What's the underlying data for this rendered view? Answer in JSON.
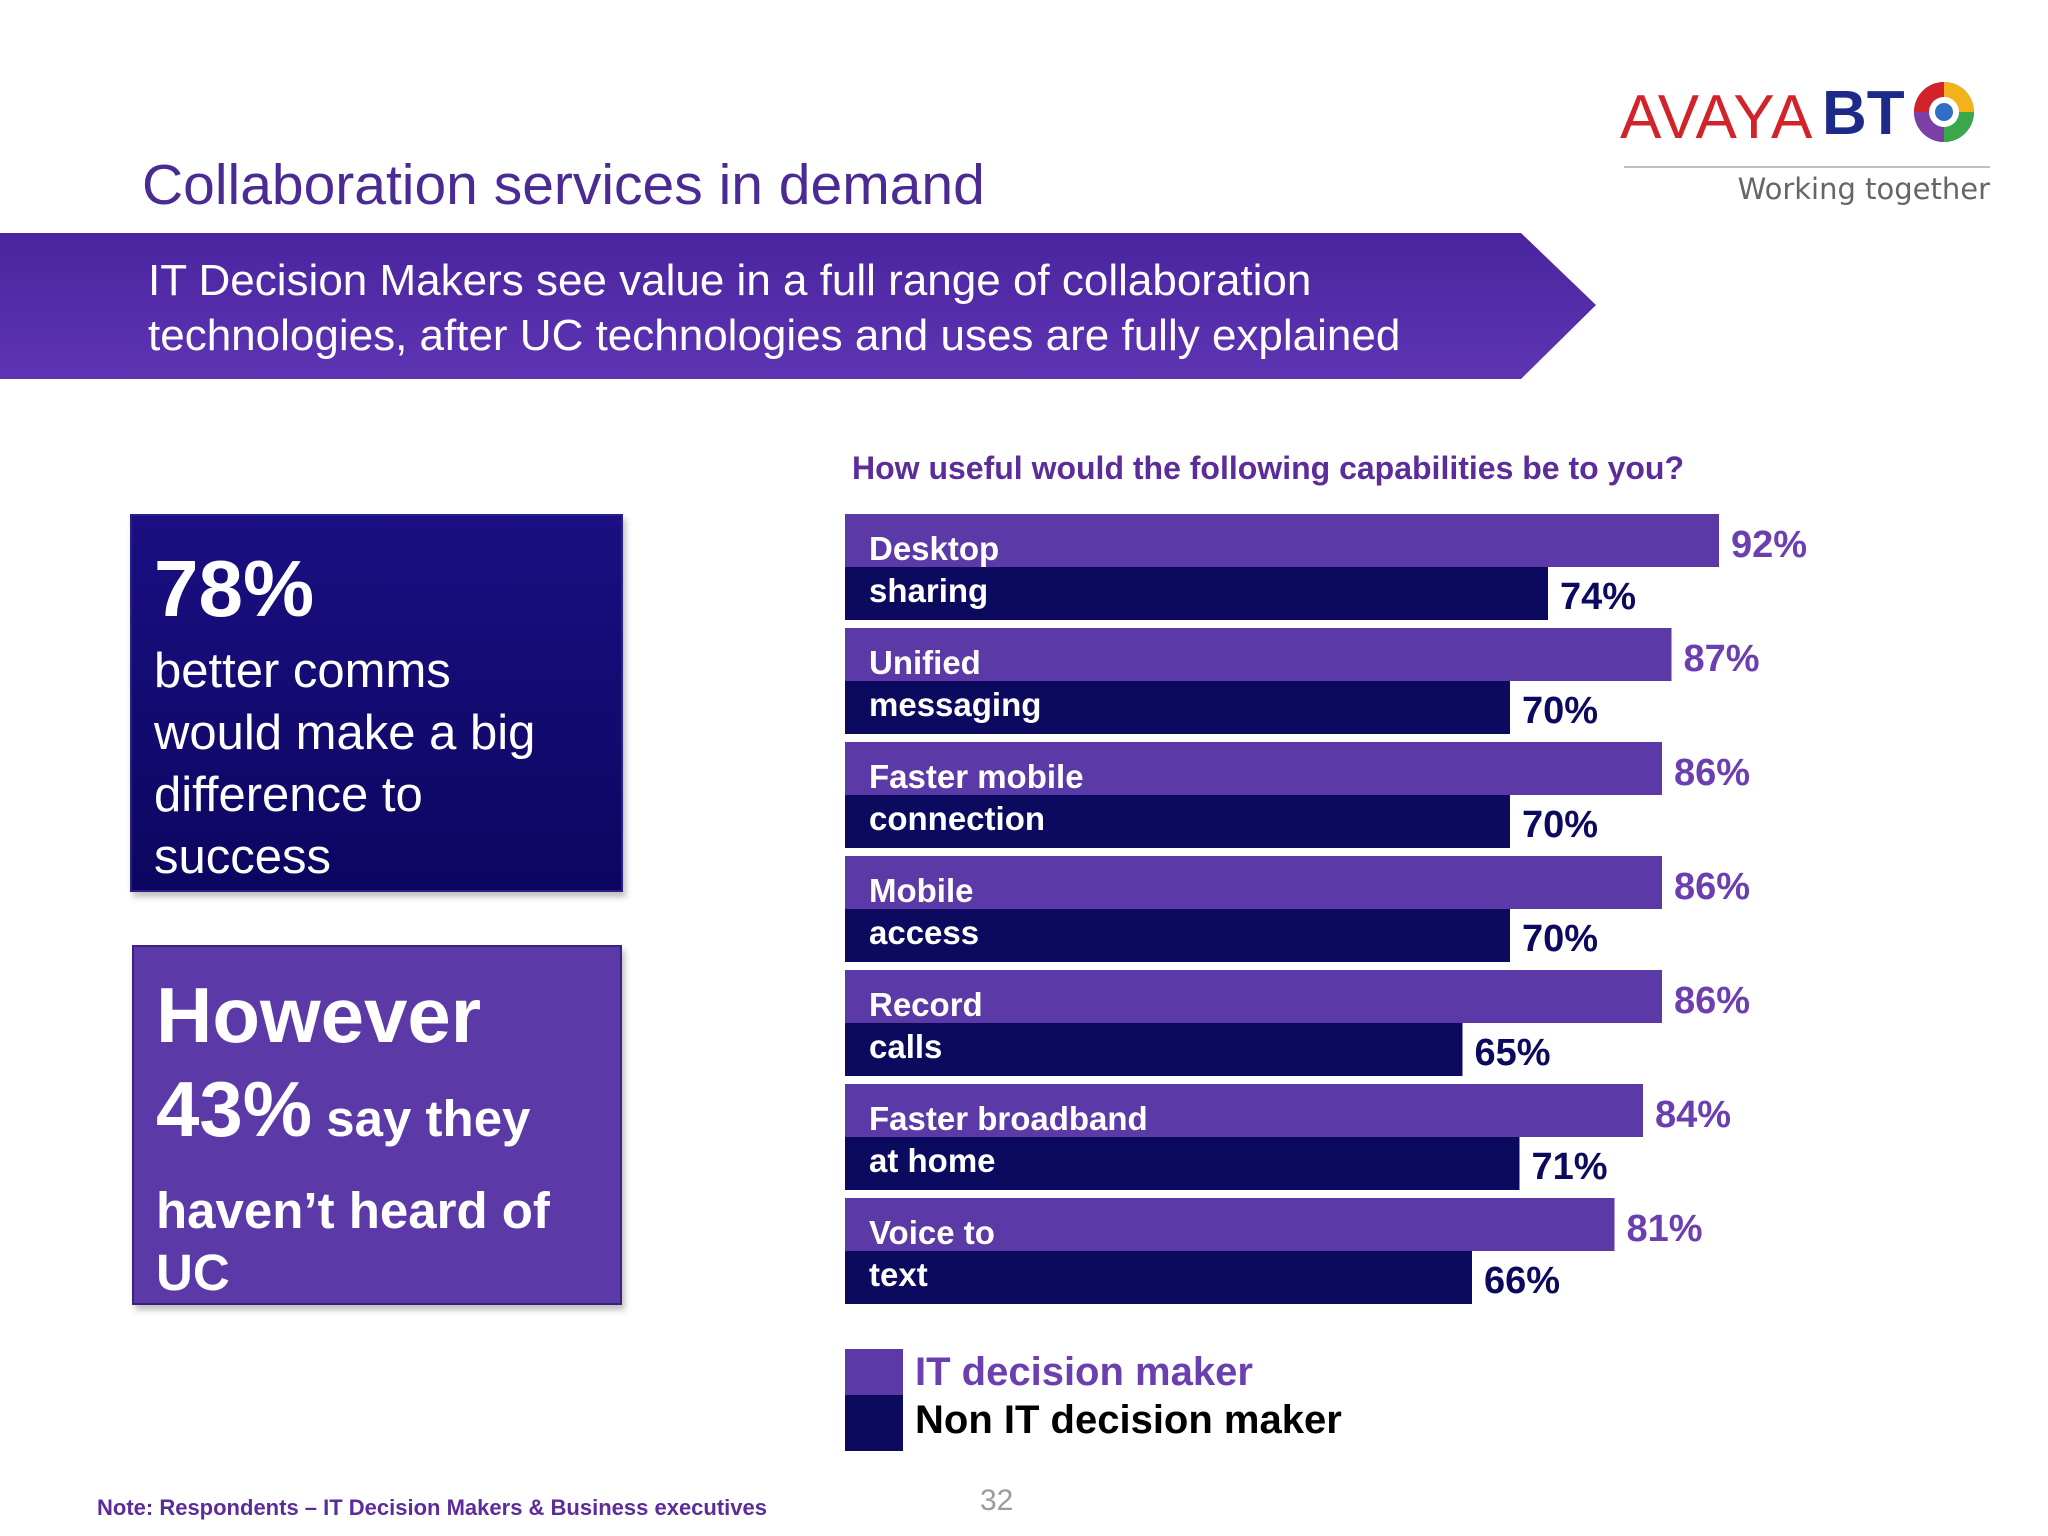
{
  "header": {
    "slide_title": "Collaboration services in demand",
    "logos": {
      "avaya": "AVAYA",
      "bt": "BT",
      "tagline": "Working together"
    },
    "banner_line1": "IT Decision Makers see value in a full range of collaboration",
    "banner_line2": "technologies, after UC technologies and uses are fully explained"
  },
  "stats": {
    "box1": {
      "big": "78%",
      "line1": "better comms",
      "line2": "would make a big",
      "line3": "difference to",
      "line4": "success"
    },
    "box2": {
      "line1": "However",
      "pct": "43%",
      "rest": " say they",
      "line3": "haven’t heard of",
      "line4": "UC"
    }
  },
  "chart_question": "How useful would the following capabilities be to you?",
  "colors": {
    "it": "#5b3aa8",
    "non_it": "#0c0a5e",
    "label_it": "#6b3fb0"
  },
  "chart_data": {
    "type": "bar",
    "orientation": "horizontal",
    "title": "How useful would the following capabilities be to you?",
    "categories": [
      [
        "Desktop",
        "sharing"
      ],
      [
        "Unified",
        "messaging"
      ],
      [
        "Faster mobile",
        "connection"
      ],
      [
        "Mobile",
        "access"
      ],
      [
        "Record",
        "calls"
      ],
      [
        "Faster broadband",
        "at home"
      ],
      [
        "Voice to",
        "text"
      ]
    ],
    "series": [
      {
        "name": "IT decision maker",
        "values": [
          92,
          87,
          86,
          86,
          86,
          84,
          81
        ],
        "labels": [
          "92%",
          "87%",
          "86%",
          "86%",
          "86%",
          "84%",
          "81%"
        ]
      },
      {
        "name": "Non IT decision maker",
        "values": [
          74,
          70,
          70,
          70,
          65,
          71,
          66
        ],
        "labels": [
          "74%",
          "70%",
          "70%",
          "70%",
          "65%",
          "71%",
          "66%"
        ]
      }
    ],
    "xlim": [
      0,
      100
    ],
    "legend": "bottom-left"
  },
  "footer": {
    "note": "Note: Respondents – IT Decision Makers & Business executives",
    "page_number": "32"
  }
}
